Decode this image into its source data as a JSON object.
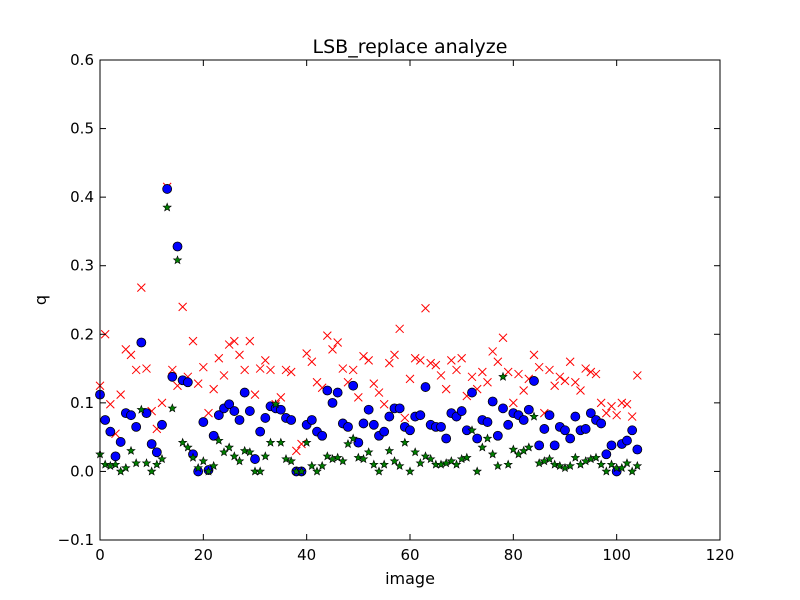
{
  "chart_data": {
    "type": "scatter",
    "title": "LSB_replace analyze",
    "xlabel": "image",
    "ylabel": "q",
    "xlim": [
      0,
      120
    ],
    "ylim": [
      -0.1,
      0.6
    ],
    "x_ticks": [
      "0",
      "20",
      "40",
      "60",
      "80",
      "100",
      "120"
    ],
    "y_ticks": [
      "−0.1",
      "0.0",
      "0.1",
      "0.2",
      "0.3",
      "0.4",
      "0.5",
      "0.6"
    ],
    "grid": false,
    "legend": "none",
    "series": [
      {
        "marker": "x",
        "color": "#ff0000",
        "values": [
          0.125,
          0.2,
          0.098,
          0.055,
          0.112,
          0.178,
          0.17,
          0.148,
          0.268,
          0.15,
          0.088,
          0.062,
          0.1,
          0.415,
          0.148,
          0.125,
          0.24,
          0.138,
          0.19,
          0.128,
          0.152,
          0.085,
          0.12,
          0.165,
          0.14,
          0.185,
          0.19,
          0.17,
          0.148,
          0.19,
          0.112,
          0.15,
          0.162,
          0.148,
          0.098,
          0.108,
          0.148,
          0.145,
          0.03,
          0.04,
          0.172,
          0.16,
          0.13,
          0.122,
          0.198,
          0.178,
          0.188,
          0.15,
          0.13,
          0.148,
          0.108,
          0.168,
          0.162,
          0.128,
          0.115,
          0.098,
          0.158,
          0.17,
          0.208,
          0.078,
          0.135,
          0.165,
          0.162,
          0.238,
          0.158,
          0.155,
          0.14,
          0.12,
          0.162,
          0.148,
          0.165,
          0.11,
          0.138,
          0.12,
          0.145,
          0.13,
          0.175,
          0.16,
          0.195,
          0.145,
          0.1,
          0.142,
          0.118,
          0.135,
          0.17,
          0.152,
          0.085,
          0.148,
          0.125,
          0.138,
          0.132,
          0.16,
          0.13,
          0.118,
          0.15,
          0.145,
          0.142,
          0.1,
          0.085,
          0.095,
          0.082,
          0.1,
          0.098,
          0.08,
          0.14
        ]
      },
      {
        "marker": "circle",
        "color": "#0000ff",
        "values": [
          0.112,
          0.075,
          0.058,
          0.022,
          0.043,
          0.085,
          0.082,
          0.065,
          0.188,
          0.085,
          0.04,
          0.028,
          0.068,
          0.412,
          0.138,
          0.328,
          0.133,
          0.13,
          0.025,
          0.0,
          0.072,
          0.002,
          0.052,
          0.082,
          0.092,
          0.098,
          0.088,
          0.075,
          0.115,
          0.088,
          0.018,
          0.058,
          0.078,
          0.095,
          0.092,
          0.09,
          0.078,
          0.075,
          0.0,
          0.0,
          0.068,
          0.075,
          0.058,
          0.052,
          0.118,
          0.1,
          0.115,
          0.07,
          0.065,
          0.125,
          0.042,
          0.07,
          0.09,
          0.068,
          0.052,
          0.058,
          0.08,
          0.092,
          0.092,
          0.065,
          0.06,
          0.08,
          0.082,
          0.123,
          0.068,
          0.065,
          0.065,
          0.048,
          0.085,
          0.08,
          0.088,
          0.06,
          0.115,
          0.048,
          0.075,
          0.072,
          0.102,
          0.052,
          0.092,
          0.068,
          0.085,
          0.082,
          0.075,
          0.09,
          0.132,
          0.038,
          0.062,
          0.082,
          0.038,
          0.065,
          0.06,
          0.048,
          0.08,
          0.06,
          0.062,
          0.085,
          0.075,
          0.07,
          0.025,
          0.038,
          0.0,
          0.04,
          0.045,
          0.06,
          0.032
        ]
      },
      {
        "marker": "star",
        "color": "#007f00",
        "values": [
          0.025,
          0.01,
          0.008,
          0.01,
          0.0,
          0.005,
          0.03,
          0.012,
          0.09,
          0.012,
          0.0,
          0.01,
          0.018,
          0.385,
          0.092,
          0.308,
          0.042,
          0.035,
          0.02,
          0.005,
          0.015,
          0.0,
          0.008,
          0.045,
          0.028,
          0.035,
          0.022,
          0.015,
          0.03,
          0.028,
          0.0,
          0.0,
          0.022,
          0.042,
          0.098,
          0.042,
          0.018,
          0.015,
          0.0,
          0.0,
          0.042,
          0.008,
          0.0,
          0.008,
          0.022,
          0.018,
          0.02,
          0.015,
          0.04,
          0.048,
          0.02,
          0.018,
          0.028,
          0.01,
          0.0,
          0.01,
          0.03,
          0.015,
          0.008,
          0.042,
          0.0,
          0.028,
          0.012,
          0.022,
          0.018,
          0.01,
          0.01,
          0.012,
          0.015,
          0.01,
          0.018,
          0.02,
          0.06,
          0.0,
          0.035,
          0.048,
          0.025,
          0.008,
          0.138,
          0.01,
          0.032,
          0.025,
          0.03,
          0.035,
          0.08,
          0.012,
          0.015,
          0.018,
          0.01,
          0.008,
          0.005,
          0.008,
          0.02,
          0.01,
          0.015,
          0.018,
          0.02,
          0.01,
          0.0,
          0.01,
          0.005,
          0.005,
          0.012,
          0.0,
          0.008
        ]
      }
    ]
  }
}
